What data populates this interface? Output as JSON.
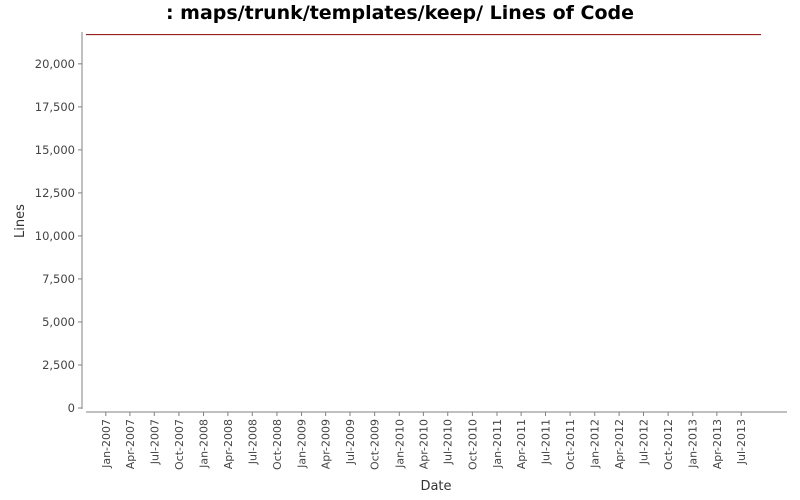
{
  "chart_data": {
    "type": "line",
    "title": ": maps/trunk/templates/keep/ Lines of Code",
    "xlabel": "Date",
    "ylabel": "Lines",
    "ylim": [
      0,
      21850
    ],
    "y_ticks": [
      0,
      2500,
      5000,
      7500,
      10000,
      12500,
      15000,
      17500,
      20000
    ],
    "y_tick_labels": [
      "0",
      "2,500",
      "5,000",
      "7,500",
      "10,000",
      "12,500",
      "15,000",
      "17,500",
      "20,000"
    ],
    "x_tick_labels": [
      "Jan-2007",
      "Apr-2007",
      "Jul-2007",
      "Oct-2007",
      "Jan-2008",
      "Apr-2008",
      "Jul-2008",
      "Oct-2008",
      "Jan-2009",
      "Apr-2009",
      "Jul-2009",
      "Oct-2009",
      "Jan-2010",
      "Apr-2010",
      "Jul-2010",
      "Oct-2010",
      "Jan-2011",
      "Apr-2011",
      "Jul-2011",
      "Oct-2011",
      "Jan-2012",
      "Apr-2012",
      "Jul-2012",
      "Oct-2012",
      "Jan-2013",
      "Apr-2013",
      "Jul-2013"
    ],
    "x_tick_dates": [
      "2007-01-01",
      "2007-04-01",
      "2007-07-01",
      "2007-10-01",
      "2008-01-01",
      "2008-04-01",
      "2008-07-01",
      "2008-10-01",
      "2009-01-01",
      "2009-04-01",
      "2009-07-01",
      "2009-10-01",
      "2010-01-01",
      "2010-04-01",
      "2010-07-01",
      "2010-10-01",
      "2011-01-01",
      "2011-04-01",
      "2011-07-01",
      "2011-10-01",
      "2012-01-01",
      "2012-04-01",
      "2012-07-01",
      "2012-10-01",
      "2013-01-01",
      "2013-04-01",
      "2013-07-01"
    ],
    "xlim": [
      "2006-10-19",
      "2013-12-19"
    ],
    "grid": false,
    "legend": "none",
    "series": [
      {
        "color": "#8b0000",
        "points": [
          {
            "x": "2006-10-19",
            "y": 21700
          },
          {
            "x": "2013-09-13",
            "y": 21700
          }
        ]
      }
    ]
  }
}
